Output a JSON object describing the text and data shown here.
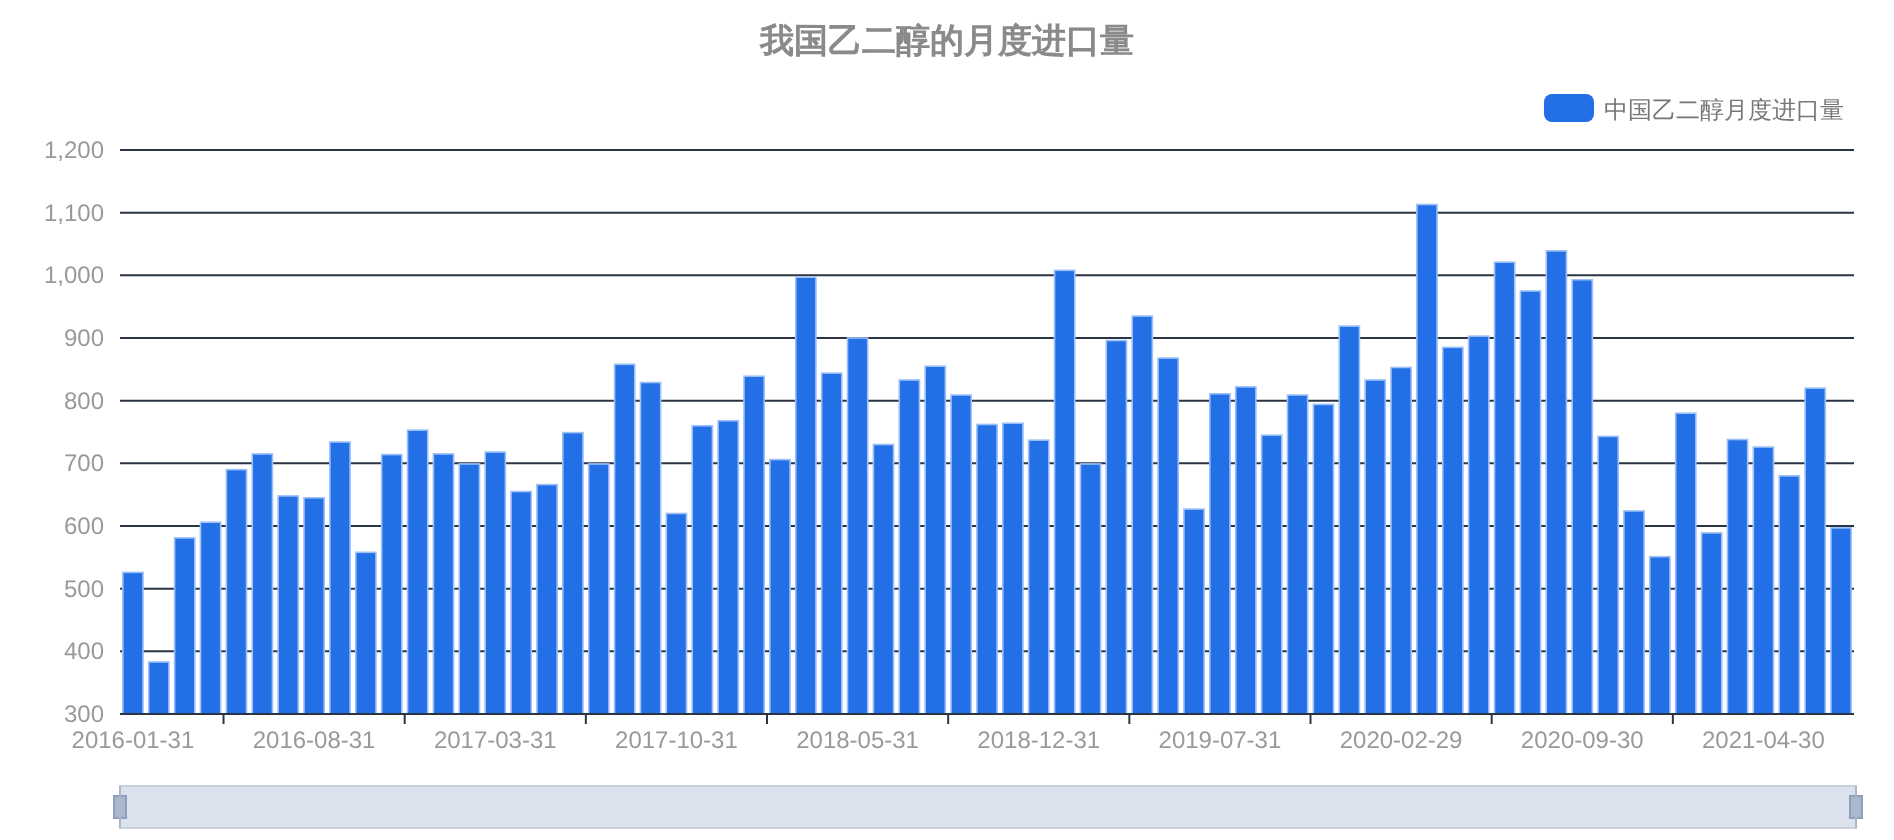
{
  "chart_data": {
    "type": "bar",
    "title": "我国乙二醇的月度进口量",
    "categories": [
      "2016-01-31",
      null,
      null,
      null,
      null,
      null,
      null,
      "2016-08-31",
      null,
      null,
      null,
      null,
      null,
      null,
      "2017-03-31",
      null,
      null,
      null,
      null,
      null,
      null,
      "2017-10-31",
      null,
      null,
      null,
      null,
      null,
      null,
      "2018-05-31",
      null,
      null,
      null,
      null,
      null,
      null,
      "2018-12-31",
      null,
      null,
      null,
      null,
      null,
      null,
      "2019-07-31",
      null,
      null,
      null,
      null,
      null,
      null,
      "2020-02-29",
      null,
      null,
      null,
      null,
      null,
      null,
      "2020-09-30",
      null,
      null,
      null,
      null,
      null,
      null,
      "2021-04-30",
      null,
      null,
      null
    ],
    "series": [
      {
        "name": "中国乙二醇月度进口量",
        "color": "#2370e6",
        "values": [
          526,
          383,
          581,
          606,
          690,
          715,
          648,
          645,
          734,
          558,
          714,
          753,
          715,
          699,
          718,
          655,
          666,
          749,
          699,
          858,
          829,
          620,
          760,
          768,
          839,
          706,
          997,
          844,
          900,
          730,
          833,
          855,
          809,
          762,
          764,
          737,
          1008,
          699,
          896,
          935,
          868,
          627,
          811,
          822,
          745,
          809,
          794,
          919,
          833,
          853,
          1113,
          885,
          903,
          1021,
          975,
          1039,
          993,
          743,
          624,
          551,
          780,
          589,
          738,
          726,
          680,
          820,
          597
        ]
      }
    ],
    "ylim": [
      300,
      1200
    ],
    "yticks": [
      {
        "value": 300,
        "label": "300"
      },
      {
        "value": 400,
        "label": "400"
      },
      {
        "value": 500,
        "label": "500"
      },
      {
        "value": 600,
        "label": "600"
      },
      {
        "value": 700,
        "label": "700"
      },
      {
        "value": 800,
        "label": "800"
      },
      {
        "value": 900,
        "label": "900"
      },
      {
        "value": 1000,
        "label": "1,000"
      },
      {
        "value": 1100,
        "label": "1,100"
      },
      {
        "value": 1200,
        "label": "1,200"
      }
    ],
    "grid": "y",
    "legend": "top right"
  }
}
